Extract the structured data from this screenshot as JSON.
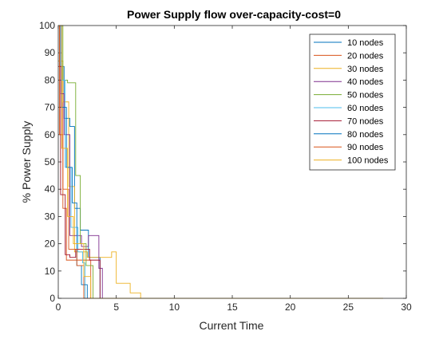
{
  "chart_data": {
    "type": "line",
    "title": "Power Supply flow over-capacity-cost=0",
    "xlabel": "Current Time",
    "ylabel": "% Power Supply",
    "xlim": [
      0,
      30
    ],
    "ylim": [
      0,
      100
    ],
    "xticks": [
      0,
      5,
      10,
      15,
      20,
      25,
      30
    ],
    "yticks": [
      0,
      10,
      20,
      30,
      40,
      50,
      60,
      70,
      80,
      90,
      100
    ],
    "grid": false,
    "legend_position": "top-right",
    "series": [
      {
        "name": "10 nodes",
        "color": "#0072BD",
        "x": [
          0,
          0.2,
          0.2,
          0.5,
          0.5,
          1.0,
          1.0,
          1.4,
          1.4,
          1.9,
          1.9,
          2.6,
          2.6,
          3.6,
          3.6,
          28
        ],
        "y": [
          100,
          100,
          85,
          85,
          66,
          66,
          63,
          63,
          33,
          33,
          25,
          25,
          15,
          15,
          0,
          0
        ]
      },
      {
        "name": "20 nodes",
        "color": "#D95319",
        "x": [
          0,
          0.15,
          0.15,
          0.4,
          0.4,
          0.7,
          0.7,
          2.8,
          2.8,
          28
        ],
        "y": [
          100,
          100,
          85,
          85,
          33,
          33,
          14,
          14,
          0,
          0
        ]
      },
      {
        "name": "30 nodes",
        "color": "#EDB120",
        "x": [
          0,
          0.4,
          0.4,
          0.9,
          0.9,
          1.4,
          1.4,
          2.5,
          2.5,
          4.6,
          4.6,
          5.0,
          5.0,
          6.2,
          6.2,
          7.1,
          7.1,
          28
        ],
        "y": [
          87,
          87,
          72,
          72,
          41,
          41,
          17,
          17,
          15,
          15,
          17,
          17,
          5.5,
          5.5,
          2,
          2,
          0,
          0
        ]
      },
      {
        "name": "40 nodes",
        "color": "#7E2F8E",
        "x": [
          0,
          0.2,
          0.2,
          0.5,
          0.5,
          1.0,
          1.0,
          2.0,
          2.0,
          2.6,
          2.6,
          3.5,
          3.5,
          3.8,
          3.8,
          28
        ],
        "y": [
          100,
          100,
          75,
          75,
          60,
          60,
          23,
          23,
          19,
          19,
          23,
          23,
          11,
          11,
          0,
          0
        ]
      },
      {
        "name": "50 nodes",
        "color": "#77AC30",
        "x": [
          0,
          0.4,
          0.4,
          0.8,
          0.8,
          1.5,
          1.5,
          1.9,
          1.9,
          2.4,
          2.4,
          3.0,
          3.0,
          28
        ],
        "y": [
          100,
          100,
          80,
          80,
          79,
          79,
          45,
          45,
          20,
          20,
          12,
          12,
          0,
          0
        ]
      },
      {
        "name": "60 nodes",
        "color": "#4DBEEE",
        "x": [
          0,
          0.2,
          0.2,
          0.6,
          0.6,
          1.1,
          1.1,
          1.7,
          1.7,
          2.1,
          2.1,
          2.3,
          2.3,
          28
        ],
        "y": [
          100,
          100,
          80,
          80,
          48,
          48,
          26,
          26,
          17,
          17,
          13,
          13,
          0,
          0
        ]
      },
      {
        "name": "70 nodes",
        "color": "#A2142F",
        "x": [
          0,
          0.2,
          0.2,
          0.6,
          0.6,
          1.0,
          1.0,
          1.5,
          1.5,
          2.7,
          2.7,
          3.6,
          3.6,
          28
        ],
        "y": [
          85,
          85,
          38,
          38,
          16,
          16,
          15,
          15,
          18,
          18,
          14,
          14,
          0,
          0
        ]
      },
      {
        "name": "80 nodes",
        "color": "#0072BD",
        "x": [
          0,
          0.3,
          0.3,
          0.7,
          0.7,
          1.2,
          1.2,
          1.6,
          1.6,
          2.0,
          2.0,
          2.5,
          2.5,
          28
        ],
        "y": [
          100,
          100,
          70,
          70,
          48,
          48,
          35,
          35,
          12,
          12,
          5,
          5,
          0,
          0
        ]
      },
      {
        "name": "90 nodes",
        "color": "#D95319",
        "x": [
          0,
          0.1,
          0.1,
          0.4,
          0.4,
          0.9,
          0.9,
          1.6,
          1.6,
          2.2,
          2.2,
          28
        ],
        "y": [
          100,
          100,
          60,
          60,
          40,
          40,
          18,
          18,
          12,
          12,
          0,
          0
        ]
      },
      {
        "name": "100 nodes",
        "color": "#EDB120",
        "x": [
          0,
          0.3,
          0.3,
          0.8,
          0.8,
          1.3,
          1.3,
          2.2,
          2.2,
          2.8,
          2.8,
          28
        ],
        "y": [
          100,
          100,
          55,
          55,
          30,
          30,
          20,
          20,
          8,
          8,
          0,
          0
        ]
      }
    ]
  }
}
